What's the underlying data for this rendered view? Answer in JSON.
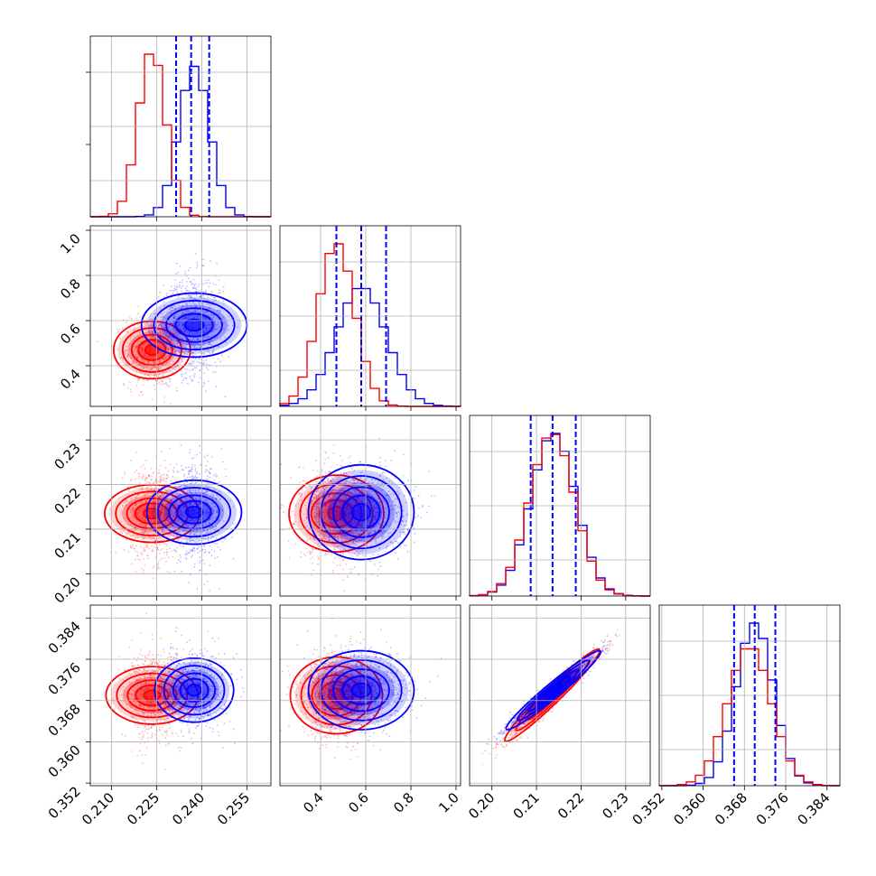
{
  "chart_data": {
    "type": "corner",
    "grid": true,
    "colors": {
      "series_a": "#ff0000",
      "series_b": "#0000ff",
      "quantile_lines": "#0000ff"
    },
    "parameters": [
      {
        "range": [
          0.203,
          0.263
        ],
        "ticks": [
          0.21,
          0.225,
          0.24,
          0.255
        ],
        "tick_labels": [
          "0.210",
          "0.225",
          "0.240",
          "0.255"
        ]
      },
      {
        "range": [
          0.22,
          1.02
        ],
        "ticks": [
          0.4,
          0.6,
          0.8,
          1.0
        ],
        "tick_labels": [
          "0.4",
          "0.6",
          "0.8",
          "1.0"
        ]
      },
      {
        "range": [
          0.195,
          0.2355
        ],
        "ticks": [
          0.2,
          0.21,
          0.22,
          0.23
        ],
        "tick_labels": [
          "0.20",
          "0.21",
          "0.22",
          "0.23"
        ]
      },
      {
        "range": [
          0.3515,
          0.3865
        ],
        "ticks": [
          0.352,
          0.36,
          0.368,
          0.376,
          0.384
        ],
        "tick_labels": [
          "0.352",
          "0.360",
          "0.368",
          "0.376",
          "0.384"
        ]
      }
    ],
    "series": [
      {
        "color": "#ff0000",
        "mean": [
          0.2235,
          0.47,
          0.2135,
          0.369
        ],
        "sd": [
          0.0045,
          0.08,
          0.005,
          0.0042
        ]
      },
      {
        "color": "#0000ff",
        "mean": [
          0.2375,
          0.58,
          0.2138,
          0.37
        ],
        "sd": [
          0.005,
          0.11,
          0.005,
          0.0036
        ]
      }
    ],
    "correlations": [
      {
        "i": 2,
        "j": 3,
        "rho": 0.97
      }
    ],
    "quantiles": [
      {
        "param": 0,
        "values": [
          0.2315,
          0.2365,
          0.2425
        ]
      },
      {
        "param": 1,
        "values": [
          0.47,
          0.58,
          0.69
        ]
      },
      {
        "param": 2,
        "values": [
          0.2087,
          0.2136,
          0.2188
        ]
      },
      {
        "param": 3,
        "values": [
          0.366,
          0.37,
          0.374
        ]
      }
    ]
  }
}
